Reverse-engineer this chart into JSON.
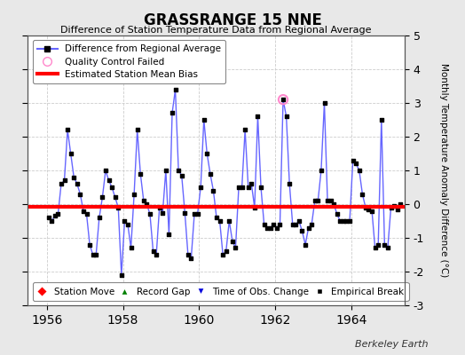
{
  "title": "GRASSRANGE 15 NNE",
  "subtitle": "Difference of Station Temperature Data from Regional Average",
  "ylabel": "Monthly Temperature Anomaly Difference (°C)",
  "xlabel_years": [
    1956,
    1958,
    1960,
    1962,
    1964
  ],
  "xlim": [
    1955.5,
    1965.4
  ],
  "ylim": [
    -3,
    5
  ],
  "yticks": [
    -3,
    -2,
    -1,
    0,
    1,
    2,
    3,
    4,
    5
  ],
  "bias_value": -0.07,
  "line_color": "#6666ff",
  "marker_color": "#000000",
  "bias_color": "#ff0000",
  "bg_color": "#e8e8e8",
  "plot_bg_color": "#ffffff",
  "berkeley_earth_text": "Berkeley Earth",
  "data": [
    [
      1956.042,
      -0.4
    ],
    [
      1956.125,
      -0.5
    ],
    [
      1956.208,
      -0.35
    ],
    [
      1956.292,
      -0.3
    ],
    [
      1956.375,
      0.6
    ],
    [
      1956.458,
      0.7
    ],
    [
      1956.542,
      2.2
    ],
    [
      1956.625,
      1.5
    ],
    [
      1956.708,
      0.8
    ],
    [
      1956.792,
      0.6
    ],
    [
      1956.875,
      0.3
    ],
    [
      1956.958,
      -0.2
    ],
    [
      1957.042,
      -0.3
    ],
    [
      1957.125,
      -1.2
    ],
    [
      1957.208,
      -1.5
    ],
    [
      1957.292,
      -1.5
    ],
    [
      1957.375,
      -0.4
    ],
    [
      1957.458,
      0.2
    ],
    [
      1957.542,
      1.0
    ],
    [
      1957.625,
      0.7
    ],
    [
      1957.708,
      0.5
    ],
    [
      1957.792,
      0.2
    ],
    [
      1957.875,
      -0.1
    ],
    [
      1957.958,
      -2.1
    ],
    [
      1958.042,
      -0.5
    ],
    [
      1958.125,
      -0.6
    ],
    [
      1958.208,
      -1.3
    ],
    [
      1958.292,
      0.3
    ],
    [
      1958.375,
      2.2
    ],
    [
      1958.458,
      0.9
    ],
    [
      1958.542,
      0.1
    ],
    [
      1958.625,
      0.0
    ],
    [
      1958.708,
      -0.3
    ],
    [
      1958.792,
      -1.4
    ],
    [
      1958.875,
      -1.5
    ],
    [
      1958.958,
      -0.1
    ],
    [
      1959.042,
      -0.25
    ],
    [
      1959.125,
      1.0
    ],
    [
      1959.208,
      -0.9
    ],
    [
      1959.292,
      2.7
    ],
    [
      1959.375,
      3.4
    ],
    [
      1959.458,
      1.0
    ],
    [
      1959.542,
      0.85
    ],
    [
      1959.625,
      -0.25
    ],
    [
      1959.708,
      -1.5
    ],
    [
      1959.792,
      -1.6
    ],
    [
      1959.875,
      -0.3
    ],
    [
      1959.958,
      -0.3
    ],
    [
      1960.042,
      0.5
    ],
    [
      1960.125,
      2.5
    ],
    [
      1960.208,
      1.5
    ],
    [
      1960.292,
      0.9
    ],
    [
      1960.375,
      0.4
    ],
    [
      1960.458,
      -0.4
    ],
    [
      1960.542,
      -0.5
    ],
    [
      1960.625,
      -1.5
    ],
    [
      1960.708,
      -1.4
    ],
    [
      1960.792,
      -0.5
    ],
    [
      1960.875,
      -1.1
    ],
    [
      1960.958,
      -1.3
    ],
    [
      1961.042,
      0.5
    ],
    [
      1961.125,
      0.5
    ],
    [
      1961.208,
      2.2
    ],
    [
      1961.292,
      0.5
    ],
    [
      1961.375,
      0.6
    ],
    [
      1961.458,
      -0.1
    ],
    [
      1961.542,
      2.6
    ],
    [
      1961.625,
      0.5
    ],
    [
      1961.708,
      -0.6
    ],
    [
      1961.792,
      -0.7
    ],
    [
      1961.875,
      -0.7
    ],
    [
      1961.958,
      -0.6
    ],
    [
      1962.042,
      -0.7
    ],
    [
      1962.125,
      -0.6
    ],
    [
      1962.208,
      3.1
    ],
    [
      1962.292,
      2.6
    ],
    [
      1962.375,
      0.6
    ],
    [
      1962.458,
      -0.6
    ],
    [
      1962.542,
      -0.6
    ],
    [
      1962.625,
      -0.5
    ],
    [
      1962.708,
      -0.8
    ],
    [
      1962.792,
      -1.2
    ],
    [
      1962.875,
      -0.7
    ],
    [
      1962.958,
      -0.6
    ],
    [
      1963.042,
      0.1
    ],
    [
      1963.125,
      0.1
    ],
    [
      1963.208,
      1.0
    ],
    [
      1963.292,
      3.0
    ],
    [
      1963.375,
      0.1
    ],
    [
      1963.458,
      0.1
    ],
    [
      1963.542,
      0.0
    ],
    [
      1963.625,
      -0.3
    ],
    [
      1963.708,
      -0.5
    ],
    [
      1963.792,
      -0.5
    ],
    [
      1963.875,
      -0.5
    ],
    [
      1963.958,
      -0.5
    ],
    [
      1964.042,
      1.3
    ],
    [
      1964.125,
      1.2
    ],
    [
      1964.208,
      1.0
    ],
    [
      1964.292,
      0.3
    ],
    [
      1964.375,
      -0.1
    ],
    [
      1964.458,
      -0.15
    ],
    [
      1964.542,
      -0.2
    ],
    [
      1964.625,
      -1.3
    ],
    [
      1964.708,
      -1.2
    ],
    [
      1964.792,
      2.5
    ],
    [
      1964.875,
      -1.2
    ],
    [
      1964.958,
      -1.3
    ],
    [
      1965.042,
      -0.1
    ],
    [
      1965.125,
      -0.05
    ],
    [
      1965.208,
      -0.15
    ],
    [
      1965.292,
      0.0
    ]
  ],
  "qc_failed": [
    [
      1962.208,
      3.1
    ]
  ],
  "grid_color": "#cccccc"
}
